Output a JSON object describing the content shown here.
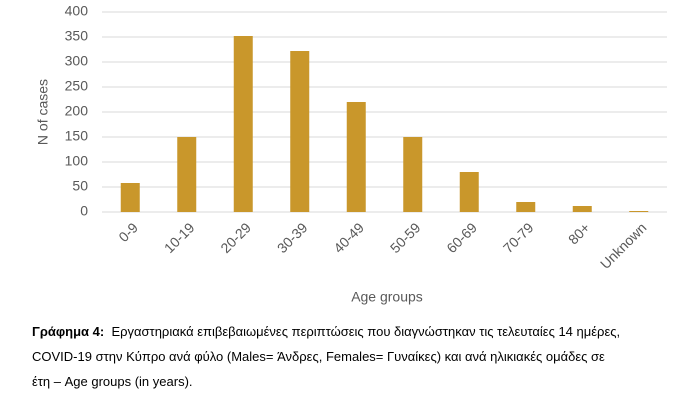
{
  "chart_data": {
    "type": "bar",
    "x_label": "Age groups",
    "y_label": "N of cases",
    "categories": [
      "0-9",
      "10-19",
      "20-29",
      "30-39",
      "40-49",
      "50-59",
      "60-69",
      "70-79",
      "80+",
      "Unknown"
    ],
    "values": [
      58,
      150,
      352,
      322,
      220,
      150,
      80,
      20,
      12,
      2
    ],
    "color": "#c9972b",
    "ylim": [
      0,
      400
    ],
    "yticks": [
      0,
      50,
      100,
      150,
      200,
      250,
      300,
      350,
      400
    ],
    "grid": true
  },
  "caption": {
    "label": "Γράφημα 4:",
    "lines": [
      "Εργαστηριακά επιβεβαιωμένες περιπτώσεις που διαγνώστηκαν τις τελευταίες 14 ημέρες,",
      "COVID-19 στην Κύπρο ανά φύλο (Males=  Άνδρες, Females= Γυναίκες) και ανά ηλικιακές ομάδες σε",
      "έτη – Age groups (in years)."
    ]
  }
}
